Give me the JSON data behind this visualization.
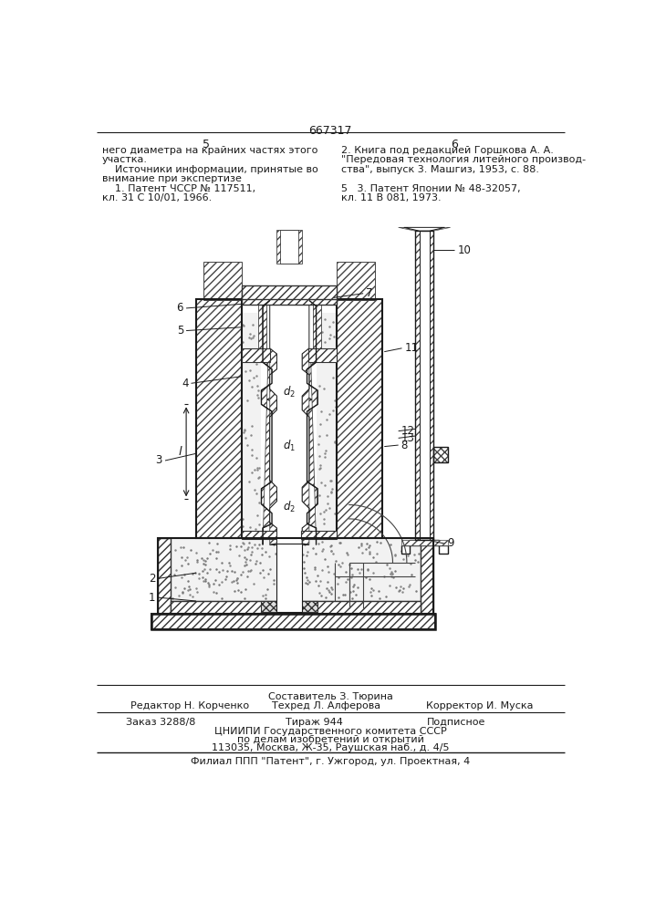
{
  "patent_number": "667317",
  "left_col_text": [
    "него диаметра на крайних частях этого",
    "участка.",
    "    Источники информации, принятые во",
    "внимание при экспертизе",
    "    1. Патент ЧССР № 117511,",
    "кл. 31 С 10/01, 1966."
  ],
  "right_col_text": [
    "2. Книга под редакцией Горшкова А. А.",
    "\"Передовая технология литейного производ-",
    "ства\", выпуск 3. Машгиз, 1953, с. 88.",
    "",
    "5   3. Патент Японии № 48-32057,",
    "кл. 11 В 081, 1973."
  ],
  "footer_sestavitel": "Составитель З. Тюрина",
  "footer_redaktor": "Редактор Н. Корченко",
  "footer_tekhred": "Техред Л. Алферова",
  "footer_korrektor": "Корректор И. Муска",
  "footer_zakaz": "Заказ 3288/8",
  "footer_tirazh": "Тираж 944",
  "footer_podpisnoe": "Подписное",
  "footer_tsniipи": "ЦНИИПИ Государственного комитета СССР",
  "footer_po_delam": "по делам изобретений и открытий",
  "footer_address": "113035, Москва, Ж-35, Раушская наб., д. 4/5",
  "footer_filial": "Филиал ППП \"Патент\", г. Ужгород, ул. Проектная, 4",
  "bg_color": "#ffffff",
  "lc": "#1a1a1a"
}
